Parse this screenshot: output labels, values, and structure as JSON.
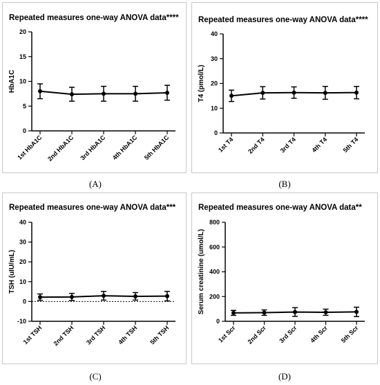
{
  "captions": [
    "(A)",
    "(B)",
    "(C)",
    "(D)"
  ],
  "chart_data": [
    {
      "type": "line",
      "title": "Repeated measures one-way ANOVA data****",
      "ylabel": "HbA1C",
      "xlabel": "",
      "categories": [
        "1st HbA1C",
        "2nd HbA1C",
        "3rd HbA1C",
        "4th HbA1C",
        "5th HbA1C"
      ],
      "values": [
        8.0,
        7.4,
        7.5,
        7.5,
        7.7
      ],
      "error": [
        1.5,
        1.4,
        1.5,
        1.5,
        1.5
      ],
      "ylim": [
        0,
        20
      ],
      "yticks": [
        0,
        5,
        10,
        15,
        20
      ],
      "zero_line": false,
      "grid": false
    },
    {
      "type": "line",
      "title": "Repeated measures one-way ANOVA data****",
      "ylabel": "T4 (pmol/L)",
      "xlabel": "",
      "categories": [
        "1st T4",
        "2nd T4",
        "3rd T4",
        "4th T4",
        "5th T4"
      ],
      "values": [
        15.0,
        16.2,
        16.3,
        16.2,
        16.3
      ],
      "error": [
        2.3,
        2.5,
        2.3,
        2.6,
        2.5
      ],
      "ylim": [
        0,
        40
      ],
      "yticks": [
        0,
        10,
        20,
        30,
        40
      ],
      "zero_line": false,
      "grid": false
    },
    {
      "type": "line",
      "title": "Repeated measures one-way ANOVA data***",
      "ylabel": "TSH  (uIU/mL)",
      "xlabel": "",
      "categories": [
        "1st TSH",
        "2nd TSH",
        "3rd TSH",
        "4th TSH",
        "5th TSH"
      ],
      "values": [
        2.2,
        2.3,
        2.9,
        2.6,
        2.7
      ],
      "error": [
        1.6,
        1.8,
        2.2,
        1.9,
        2.4
      ],
      "ylim": [
        -10,
        40
      ],
      "yticks": [
        -10,
        0,
        10,
        20,
        30,
        40
      ],
      "zero_line": true,
      "grid": false
    },
    {
      "type": "line",
      "title": "Repeated measures one-way ANOVA data**",
      "ylabel": "Serum creatinine (umol/L)",
      "xlabel": "",
      "categories": [
        "1st Scr",
        "2nd Scr",
        "3rd Scr",
        "4th Scr",
        "5th Scr"
      ],
      "values": [
        68,
        70,
        75,
        73,
        76
      ],
      "error": [
        20,
        22,
        35,
        25,
        38
      ],
      "ylim": [
        0,
        800
      ],
      "yticks": [
        0,
        200,
        400,
        600,
        800
      ],
      "zero_line": false,
      "grid": false
    }
  ]
}
